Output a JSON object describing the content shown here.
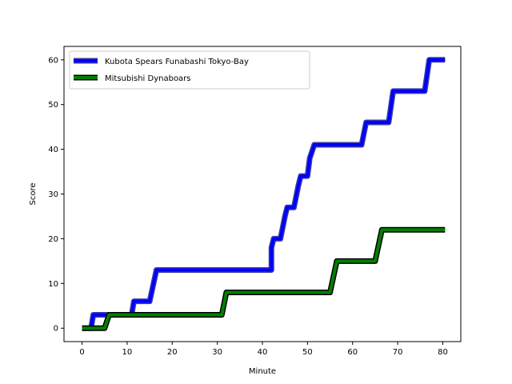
{
  "chart_data": {
    "type": "line",
    "title": "",
    "xlabel": "Minute",
    "ylabel": "Score",
    "xlim": [
      -4,
      84
    ],
    "ylim": [
      -3,
      63
    ],
    "xticks": [
      0,
      10,
      20,
      30,
      40,
      50,
      60,
      70,
      80
    ],
    "yticks": [
      0,
      10,
      20,
      30,
      40,
      50,
      60
    ],
    "grid": false,
    "legend": "top-left",
    "series": [
      {
        "name": "Kubota Spears Funabashi Tokyo-Bay",
        "color": "#0000ff",
        "edge_color": "#3a3aa8",
        "x": [
          0,
          2,
          2.5,
          11,
          11.5,
          15,
          16.5,
          42,
          42,
          42.5,
          44,
          45,
          45.5,
          47,
          48,
          48.5,
          50,
          50.5,
          51.5,
          62,
          63,
          68,
          69,
          76,
          77,
          80.5
        ],
        "y": [
          0,
          0,
          3,
          3,
          6,
          6,
          13,
          13,
          18,
          20,
          20,
          25,
          27,
          27,
          32,
          34,
          34,
          38,
          41,
          41,
          46,
          46,
          53,
          53,
          60,
          60
        ]
      },
      {
        "name": "Mitsubishi Dynaboars",
        "color": "#008000",
        "edge_color": "#000000",
        "x": [
          0,
          5,
          6,
          31,
          32,
          55,
          56.5,
          65,
          66.5,
          80.5
        ],
        "y": [
          0,
          0,
          3,
          3,
          8,
          8,
          15,
          15,
          22,
          22
        ]
      }
    ]
  }
}
